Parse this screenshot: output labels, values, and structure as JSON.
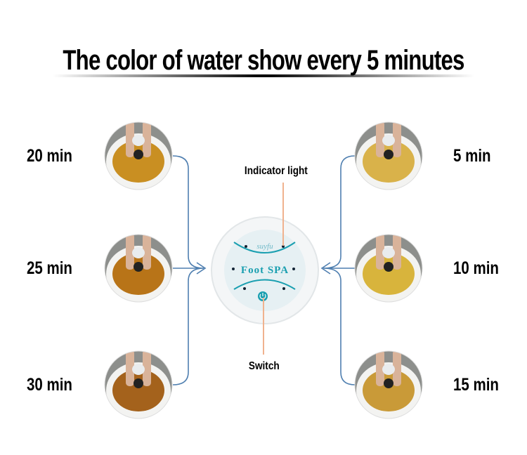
{
  "title": "The color of water show every 5 minutes",
  "device": {
    "label_indicator": "Indicator light",
    "label_switch": "Switch",
    "panel_text": "Foot SPA",
    "logo_text": "suyfu",
    "accent_color": "#1a9fb0"
  },
  "stages": [
    {
      "time": "5 min",
      "side": "right",
      "water_color": "#d9b24a"
    },
    {
      "time": "10 min",
      "side": "right",
      "water_color": "#d8b43c"
    },
    {
      "time": "15 min",
      "side": "right",
      "water_color": "#c99a38"
    },
    {
      "time": "20 min",
      "side": "left",
      "water_color": "#c98f22"
    },
    {
      "time": "25 min",
      "side": "left",
      "water_color": "#b87418"
    },
    {
      "time": "30 min",
      "side": "left",
      "water_color": "#a4621c"
    }
  ],
  "connector_color": "#4f7fb0",
  "pointer_color": "#f0b28e"
}
